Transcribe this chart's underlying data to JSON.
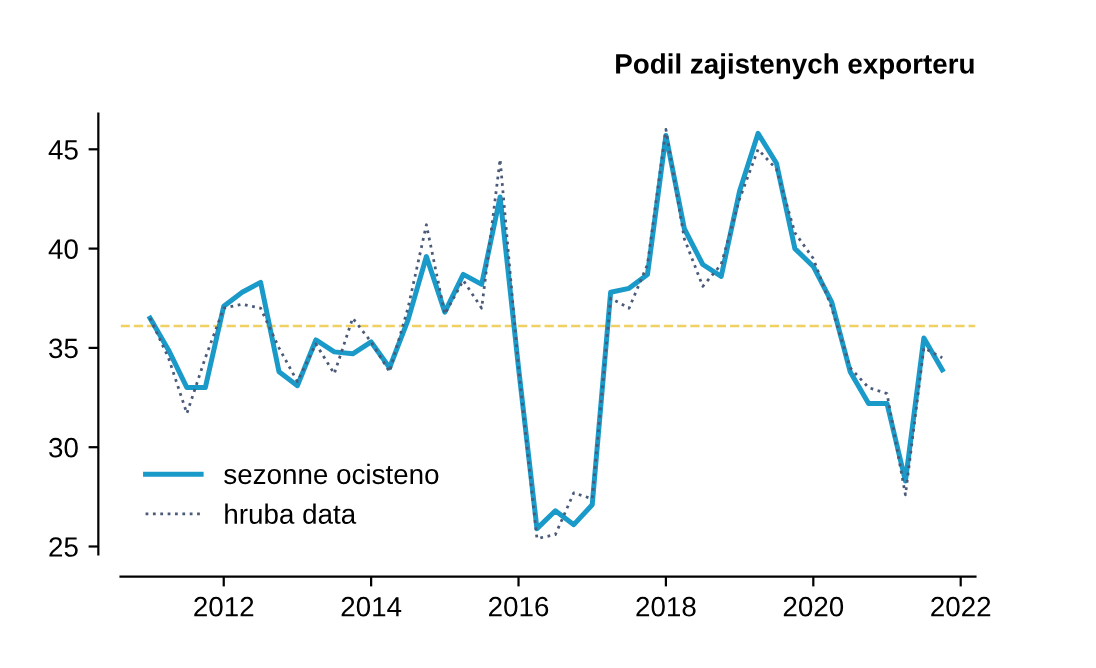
{
  "chart_data": {
    "type": "line",
    "title": "Podil zajistenych exporteru",
    "x": [
      2011.0,
      2011.25,
      2011.5,
      2011.75,
      2012.0,
      2012.25,
      2012.5,
      2012.75,
      2013.0,
      2013.25,
      2013.5,
      2013.75,
      2014.0,
      2014.25,
      2014.5,
      2014.75,
      2015.0,
      2015.25,
      2015.5,
      2015.75,
      2016.0,
      2016.25,
      2016.5,
      2016.75,
      2017.0,
      2017.25,
      2017.5,
      2017.75,
      2018.0,
      2018.25,
      2018.5,
      2018.75,
      2019.0,
      2019.25,
      2019.5,
      2019.75,
      2020.0,
      2020.25,
      2020.5,
      2020.75,
      2021.0,
      2021.25,
      2021.5,
      2021.75
    ],
    "series": [
      {
        "name": "sezonne ocisteno",
        "color": "#1a9ac9",
        "line_style": "solid",
        "values": [
          36.5,
          34.9,
          33.0,
          33.0,
          37.1,
          37.8,
          38.3,
          33.8,
          33.1,
          35.4,
          34.8,
          34.7,
          35.3,
          34.0,
          36.4,
          39.6,
          36.8,
          38.7,
          38.2,
          42.6,
          34.0,
          25.9,
          26.8,
          26.1,
          27.1,
          37.8,
          38.0,
          38.7,
          45.7,
          41.0,
          39.2,
          38.6,
          42.9,
          45.8,
          44.3,
          40.0,
          39.1,
          37.3,
          33.8,
          32.2,
          32.2,
          28.3,
          35.5,
          33.9
        ]
      },
      {
        "name": "hruba data",
        "color": "#4a5a78",
        "line_style": "dotted",
        "values": [
          36.5,
          34.5,
          31.7,
          34.5,
          37.0,
          37.2,
          37.0,
          35.0,
          33.3,
          35.2,
          33.7,
          36.5,
          35.3,
          33.8,
          37.0,
          41.2,
          36.7,
          38.4,
          37.0,
          44.5,
          34.0,
          25.4,
          25.6,
          27.7,
          27.4,
          37.5,
          37.0,
          39.2,
          46.0,
          40.5,
          38.1,
          39.2,
          42.5,
          45.0,
          44.0,
          40.8,
          39.5,
          37.0,
          34.0,
          33.0,
          32.7,
          27.6,
          35.0,
          34.5
        ]
      }
    ],
    "ref_lines": [
      {
        "axis": "y",
        "value": 36.1,
        "color": "#f0d060",
        "line_style": "dashed"
      }
    ],
    "xlim": [
      2010.6,
      2022.2
    ],
    "xticks": [
      2012,
      2014,
      2016,
      2018,
      2020,
      2022
    ],
    "ylim": [
      24.6,
      46.8
    ],
    "yticks": [
      25,
      30,
      35,
      40,
      45
    ],
    "legend": "bottom left",
    "grid": false
  }
}
